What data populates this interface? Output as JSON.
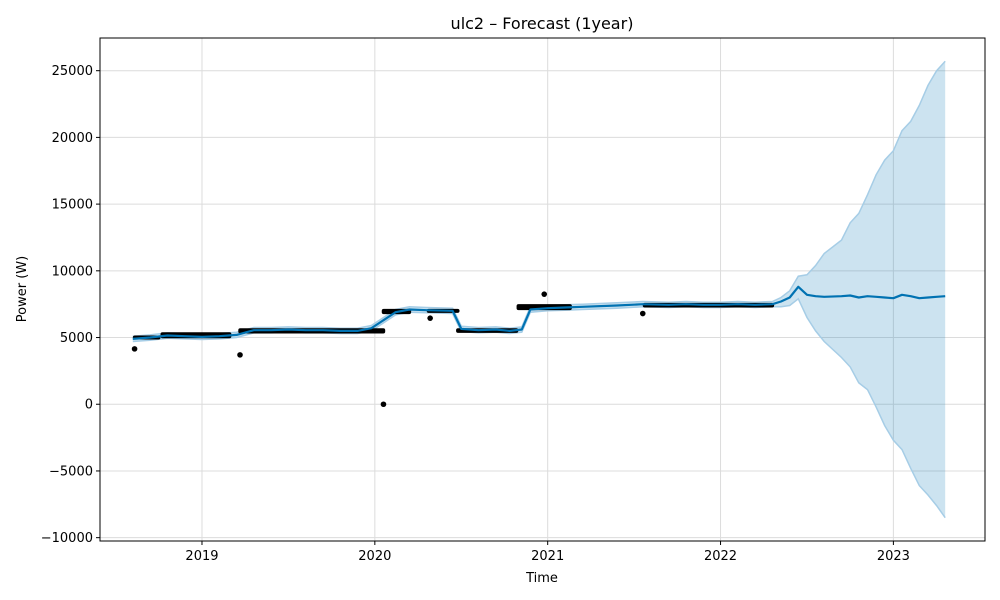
{
  "chart_data": {
    "type": "line",
    "title": "ulc2 – Forecast (1year)",
    "xlabel": "Time",
    "ylabel": "Power (W)",
    "xlim": [
      2018.41,
      2023.53
    ],
    "ylim": [
      -10250,
      27450
    ],
    "grid": true,
    "x_ticks": [
      {
        "value": 2019,
        "label": "2019"
      },
      {
        "value": 2020,
        "label": "2020"
      },
      {
        "value": 2021,
        "label": "2021"
      },
      {
        "value": 2022,
        "label": "2022"
      },
      {
        "value": 2023,
        "label": "2023"
      }
    ],
    "y_ticks": [
      {
        "value": 25000,
        "label": "25000"
      },
      {
        "value": 20000,
        "label": "20000"
      },
      {
        "value": 15000,
        "label": "15000"
      },
      {
        "value": 10000,
        "label": "10000"
      },
      {
        "value": 5000,
        "label": "5000"
      },
      {
        "value": 0,
        "label": "0"
      },
      {
        "value": -5000,
        "label": "−5000"
      },
      {
        "value": -10000,
        "label": "−10000"
      }
    ],
    "series": [
      {
        "kind": "observed",
        "color": "#000000",
        "segments": [
          {
            "x": [
              2018.6,
              2018.76
            ],
            "y_low": 4850,
            "y_high": 5150
          },
          {
            "x": [
              2018.76,
              2019.17
            ],
            "y_low": 4950,
            "y_high": 5400
          },
          {
            "x": [
              2019.21,
              2020.06
            ],
            "y_low": 5300,
            "y_high": 5700
          },
          {
            "x": [
              2020.04,
              2020.21
            ],
            "y_low": 6750,
            "y_high": 7150
          },
          {
            "x": [
              2020.3,
              2020.49
            ],
            "y_low": 6850,
            "y_high": 7150
          },
          {
            "x": [
              2020.47,
              2020.83
            ],
            "y_low": 5350,
            "y_high": 5700
          },
          {
            "x": [
              2020.82,
              2021.14
            ],
            "y_low": 7050,
            "y_high": 7500
          },
          {
            "x": [
              2021.55,
              2022.31
            ],
            "y_low": 7250,
            "y_high": 7600
          }
        ],
        "outliers": [
          {
            "x": 2018.61,
            "y": 4150
          },
          {
            "x": 2019.22,
            "y": 3700
          },
          {
            "x": 2020.05,
            "y": 0
          },
          {
            "x": 2020.32,
            "y": 6450
          },
          {
            "x": 2020.98,
            "y": 8250
          },
          {
            "x": 2021.55,
            "y": 6800
          }
        ]
      },
      {
        "kind": "forecast",
        "color": "#0072B2",
        "x": [
          2018.6,
          2018.7,
          2018.8,
          2018.9,
          2019.0,
          2019.1,
          2019.2,
          2019.3,
          2019.4,
          2019.5,
          2019.6,
          2019.7,
          2019.8,
          2019.9,
          2019.98,
          2020.05,
          2020.12,
          2020.2,
          2020.3,
          2020.45,
          2020.5,
          2020.6,
          2020.7,
          2020.78,
          2020.85,
          2020.9,
          2021.0,
          2021.1,
          2021.2,
          2021.4,
          2021.55,
          2021.7,
          2021.8,
          2021.9,
          2022.0,
          2022.1,
          2022.2,
          2022.3,
          2022.35,
          2022.4,
          2022.45,
          2022.5,
          2022.55,
          2022.6,
          2022.7,
          2022.75,
          2022.8,
          2022.85,
          2022.9,
          2022.95,
          2023.0,
          2023.05,
          2023.1,
          2023.15,
          2023.2,
          2023.25,
          2023.3
        ],
        "yhat": [
          4900,
          5000,
          5150,
          5100,
          5050,
          5100,
          5200,
          5550,
          5550,
          5600,
          5550,
          5550,
          5500,
          5500,
          5700,
          6300,
          6900,
          7100,
          7050,
          7000,
          5650,
          5550,
          5600,
          5500,
          5600,
          7100,
          7200,
          7250,
          7300,
          7400,
          7500,
          7450,
          7500,
          7450,
          7450,
          7500,
          7450,
          7500,
          7700,
          8000,
          8800,
          8200,
          8100,
          8050,
          8100,
          8150,
          8000,
          8100,
          8050,
          8000,
          7950,
          8200,
          8100,
          7950,
          8000,
          8050,
          8100
        ],
        "yhat_lower": [
          4700,
          4800,
          4950,
          4900,
          4850,
          4900,
          5000,
          5350,
          5350,
          5400,
          5350,
          5350,
          5300,
          5300,
          5500,
          6100,
          6700,
          6900,
          6850,
          6800,
          5450,
          5350,
          5400,
          5300,
          5400,
          6900,
          7000,
          7050,
          7100,
          7200,
          7300,
          7250,
          7300,
          7250,
          7250,
          7300,
          7250,
          7300,
          7300,
          7400,
          7900,
          6500,
          5500,
          4700,
          3500,
          2800,
          1600,
          1100,
          -200,
          -1600,
          -2700,
          -3400,
          -4800,
          -6100,
          -6800,
          -7600,
          -8500
        ],
        "yhat_upper": [
          5100,
          5200,
          5350,
          5300,
          5250,
          5300,
          5400,
          5750,
          5750,
          5800,
          5750,
          5750,
          5700,
          5700,
          5900,
          6500,
          7100,
          7300,
          7250,
          7200,
          5850,
          5750,
          5800,
          5700,
          5800,
          7300,
          7400,
          7450,
          7500,
          7600,
          7700,
          7650,
          7700,
          7650,
          7650,
          7700,
          7650,
          7700,
          8000,
          8500,
          9600,
          9700,
          10400,
          11300,
          12300,
          13600,
          14300,
          15700,
          17200,
          18300,
          19000,
          20500,
          21200,
          22400,
          23900,
          25000,
          25700
        ]
      }
    ]
  }
}
